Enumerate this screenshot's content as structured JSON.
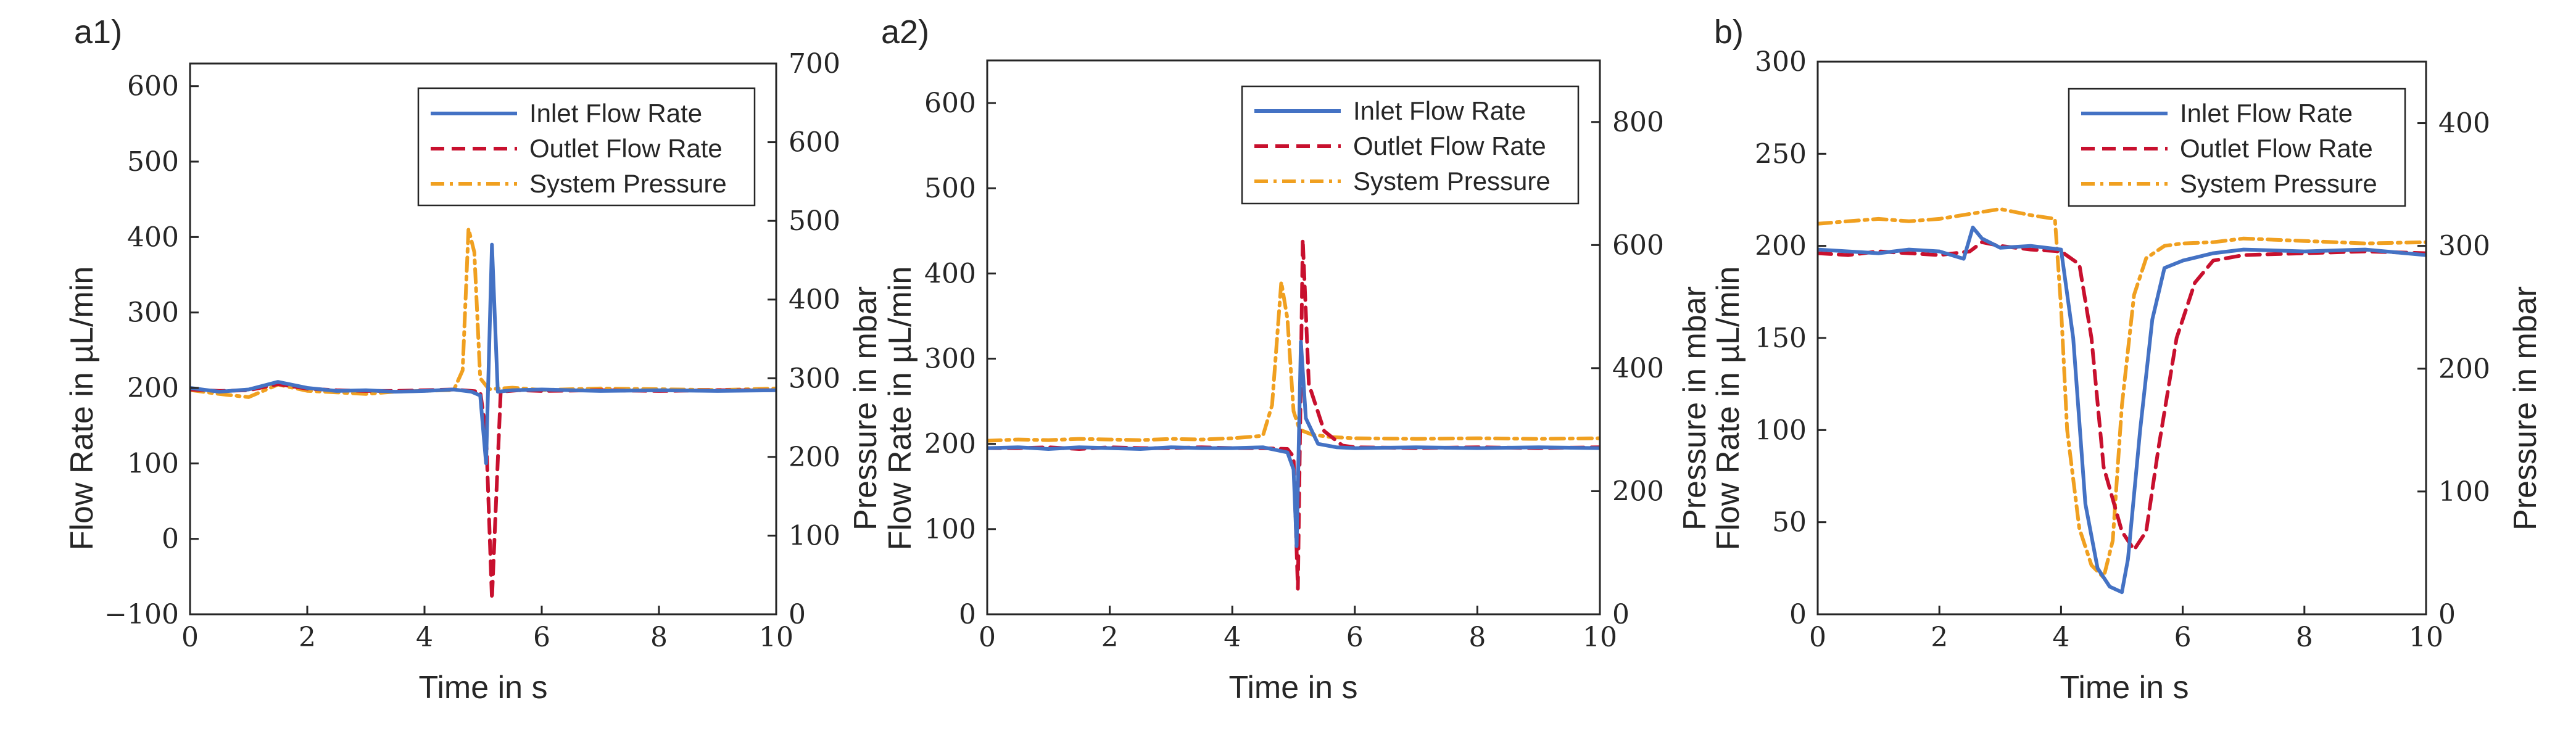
{
  "colors": {
    "inlet": "#4472c4",
    "outlet": "#c8102e",
    "pressure": "#f0a020",
    "axis": "#262626"
  },
  "chart_data": [
    {
      "type": "line",
      "panel_label": "a1)",
      "xlabel": "Time in s",
      "ylabel_left": "Flow Rate in µL/min",
      "ylabel_right": "Pressure in mbar",
      "xlim": [
        0,
        10
      ],
      "ylim_left": [
        -100,
        630
      ],
      "ylim_right": [
        0,
        700
      ],
      "xticks": [
        0,
        2,
        4,
        6,
        8,
        10
      ],
      "yticks_left": [
        -100,
        0,
        100,
        200,
        300,
        400,
        500,
        600
      ],
      "yticks_right": [
        0,
        100,
        200,
        300,
        400,
        500,
        600,
        700
      ],
      "legend": [
        "Inlet Flow Rate",
        "Outlet Flow Rate",
        "System Pressure"
      ],
      "series": [
        {
          "name": "Inlet Flow Rate",
          "axis": "left",
          "style": "solid",
          "color_key": "inlet",
          "x": [
            0,
            0.5,
            1.0,
            1.5,
            2.0,
            2.5,
            3.0,
            3.5,
            4.0,
            4.5,
            4.8,
            4.95,
            5.05,
            5.15,
            5.25,
            5.5,
            6.0,
            7.0,
            8.0,
            9.0,
            10
          ],
          "y": [
            200,
            195,
            198,
            208,
            200,
            196,
            197,
            195,
            196,
            198,
            195,
            190,
            100,
            390,
            195,
            197,
            198,
            196,
            197,
            196,
            197
          ]
        },
        {
          "name": "Outlet Flow Rate",
          "axis": "left",
          "style": "dashed",
          "color_key": "outlet",
          "x": [
            0,
            0.5,
            1.0,
            1.5,
            2.0,
            2.5,
            3.0,
            3.5,
            4.0,
            4.5,
            4.8,
            4.95,
            5.05,
            5.15,
            5.3,
            5.6,
            6.0,
            7.0,
            8.0,
            9.0,
            10
          ],
          "y": [
            198,
            196,
            197,
            205,
            199,
            197,
            196,
            196,
            197,
            198,
            196,
            195,
            140,
            -80,
            195,
            197,
            196,
            197,
            196,
            197,
            197
          ]
        },
        {
          "name": "System Pressure",
          "axis": "right",
          "style": "dashdot",
          "color_key": "pressure",
          "x": [
            0,
            0.5,
            1.0,
            1.5,
            2.0,
            2.5,
            3.0,
            3.5,
            4.0,
            4.5,
            4.65,
            4.75,
            4.85,
            4.95,
            5.1,
            5.5,
            6.0,
            7.0,
            8.0,
            9.0,
            10
          ],
          "y": [
            285,
            280,
            276,
            292,
            284,
            282,
            280,
            283,
            284,
            285,
            310,
            490,
            460,
            300,
            286,
            288,
            285,
            287,
            286,
            285,
            287
          ]
        }
      ]
    },
    {
      "type": "line",
      "panel_label": "a2)",
      "xlabel": "Time in s",
      "ylabel_left": "Flow Rate in µL/min",
      "ylabel_right": "Pressure in mbar",
      "xlim": [
        0,
        10
      ],
      "ylim_left": [
        0,
        650
      ],
      "ylim_right": [
        0,
        900
      ],
      "xticks": [
        0,
        2,
        4,
        6,
        8,
        10
      ],
      "yticks_left": [
        0,
        100,
        200,
        300,
        400,
        500,
        600
      ],
      "yticks_right": [
        0,
        200,
        400,
        600,
        800
      ],
      "legend": [
        "Inlet Flow Rate",
        "Outlet Flow Rate",
        "System Pressure"
      ],
      "series": [
        {
          "name": "Inlet Flow Rate",
          "axis": "left",
          "style": "solid",
          "color_key": "inlet",
          "x": [
            0,
            0.5,
            1.0,
            1.5,
            2.0,
            2.5,
            3.0,
            3.5,
            4.0,
            4.5,
            4.9,
            5.0,
            5.05,
            5.12,
            5.2,
            5.4,
            5.7,
            6.0,
            7.0,
            8.0,
            9.0,
            10
          ],
          "y": [
            195,
            196,
            194,
            196,
            195,
            194,
            196,
            195,
            195,
            196,
            190,
            170,
            80,
            320,
            230,
            200,
            196,
            195,
            196,
            195,
            196,
            195
          ]
        },
        {
          "name": "Outlet Flow Rate",
          "axis": "left",
          "style": "dashed",
          "color_key": "outlet",
          "x": [
            0,
            0.5,
            1.0,
            1.5,
            2.0,
            2.5,
            3.0,
            3.5,
            4.0,
            4.5,
            4.9,
            5.0,
            5.07,
            5.15,
            5.25,
            5.5,
            5.8,
            6.0,
            7.0,
            8.0,
            9.0,
            10
          ],
          "y": [
            195,
            195,
            196,
            194,
            196,
            195,
            195,
            196,
            195,
            195,
            194,
            185,
            30,
            440,
            270,
            215,
            198,
            196,
            195,
            196,
            195,
            196
          ]
        },
        {
          "name": "System Pressure",
          "axis": "right",
          "style": "dashdot",
          "color_key": "pressure",
          "x": [
            0,
            0.5,
            1.0,
            1.5,
            2.0,
            2.5,
            3.0,
            3.5,
            4.0,
            4.5,
            4.65,
            4.8,
            4.9,
            5.0,
            5.1,
            5.3,
            5.6,
            6.0,
            7.0,
            8.0,
            9.0,
            10
          ],
          "y": [
            282,
            284,
            283,
            285,
            284,
            283,
            285,
            284,
            286,
            290,
            340,
            540,
            480,
            330,
            300,
            292,
            288,
            286,
            285,
            286,
            285,
            286
          ]
        }
      ]
    },
    {
      "type": "line",
      "panel_label": "b)",
      "xlabel": "Time in s",
      "ylabel_left": "Flow Rate in µL/min",
      "ylabel_right": "Pressure in mbar",
      "xlim": [
        0,
        10
      ],
      "ylim_left": [
        0,
        300
      ],
      "ylim_right": [
        0,
        450
      ],
      "xticks": [
        0,
        2,
        4,
        6,
        8,
        10
      ],
      "yticks_left": [
        0,
        50,
        100,
        150,
        200,
        250,
        300
      ],
      "yticks_right": [
        0,
        100,
        200,
        300,
        400
      ],
      "legend": [
        "Inlet Flow Rate",
        "Outlet Flow Rate",
        "System Pressure"
      ],
      "series": [
        {
          "name": "Inlet Flow Rate",
          "axis": "left",
          "style": "solid",
          "color_key": "inlet",
          "x": [
            0,
            0.5,
            1.0,
            1.5,
            2.0,
            2.4,
            2.55,
            2.7,
            3.0,
            3.5,
            4.0,
            4.2,
            4.4,
            4.6,
            4.8,
            5.0,
            5.1,
            5.3,
            5.5,
            5.7,
            6.0,
            6.5,
            7.0,
            8.0,
            9.0,
            10
          ],
          "y": [
            198,
            197,
            196,
            198,
            197,
            193,
            210,
            204,
            199,
            200,
            198,
            150,
            60,
            25,
            15,
            12,
            30,
            100,
            160,
            188,
            192,
            196,
            198,
            197,
            198,
            195
          ]
        },
        {
          "name": "Outlet Flow Rate",
          "axis": "left",
          "style": "dashed",
          "color_key": "outlet",
          "x": [
            0,
            0.5,
            1.0,
            1.5,
            2.0,
            2.5,
            2.7,
            3.0,
            3.5,
            4.0,
            4.3,
            4.5,
            4.7,
            5.0,
            5.2,
            5.4,
            5.6,
            5.9,
            6.2,
            6.5,
            7.0,
            8.0,
            9.0,
            10
          ],
          "y": [
            196,
            195,
            197,
            196,
            195,
            197,
            202,
            200,
            198,
            197,
            190,
            150,
            80,
            45,
            35,
            45,
            90,
            150,
            180,
            192,
            195,
            196,
            197,
            196
          ]
        },
        {
          "name": "System Pressure",
          "axis": "right",
          "style": "dashdot",
          "color_key": "pressure",
          "x": [
            0,
            0.5,
            1.0,
            1.5,
            2.0,
            2.5,
            3.0,
            3.5,
            3.9,
            4.0,
            4.1,
            4.3,
            4.5,
            4.7,
            4.85,
            5.0,
            5.2,
            5.4,
            5.7,
            6.0,
            6.5,
            7.0,
            8.0,
            9.0,
            10
          ],
          "y": [
            318,
            320,
            322,
            320,
            322,
            326,
            330,
            325,
            322,
            250,
            150,
            70,
            40,
            30,
            60,
            170,
            260,
            290,
            300,
            302,
            303,
            306,
            304,
            302,
            303
          ]
        }
      ]
    }
  ]
}
